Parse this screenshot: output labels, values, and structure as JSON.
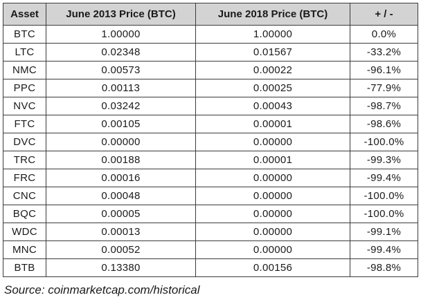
{
  "table": {
    "headers": [
      "Asset",
      "June 2013 Price (BTC)",
      "June 2018 Price (BTC)",
      "+ / -"
    ],
    "rows": [
      [
        "BTC",
        "1.00000",
        "1.00000",
        "0.0%"
      ],
      [
        "LTC",
        "0.02348",
        "0.01567",
        "-33.2%"
      ],
      [
        "NMC",
        "0.00573",
        "0.00022",
        "-96.1%"
      ],
      [
        "PPC",
        "0.00113",
        "0.00025",
        "-77.9%"
      ],
      [
        "NVC",
        "0.03242",
        "0.00043",
        "-98.7%"
      ],
      [
        "FTC",
        "0.00105",
        "0.00001",
        "-98.6%"
      ],
      [
        "DVC",
        "0.00000",
        "0.00000",
        "-100.0%"
      ],
      [
        "TRC",
        "0.00188",
        "0.00001",
        "-99.3%"
      ],
      [
        "FRC",
        "0.00016",
        "0.00000",
        "-99.4%"
      ],
      [
        "CNC",
        "0.00048",
        "0.00000",
        "-100.0%"
      ],
      [
        "BQC",
        "0.00005",
        "0.00000",
        "-100.0%"
      ],
      [
        "WDC",
        "0.00013",
        "0.00000",
        "-99.1%"
      ],
      [
        "MNC",
        "0.00052",
        "0.00000",
        "-99.4%"
      ],
      [
        "BTB",
        "0.13380",
        "0.00156",
        "-98.8%"
      ]
    ]
  },
  "source_note": "Source: coinmarketcap.com/historical"
}
